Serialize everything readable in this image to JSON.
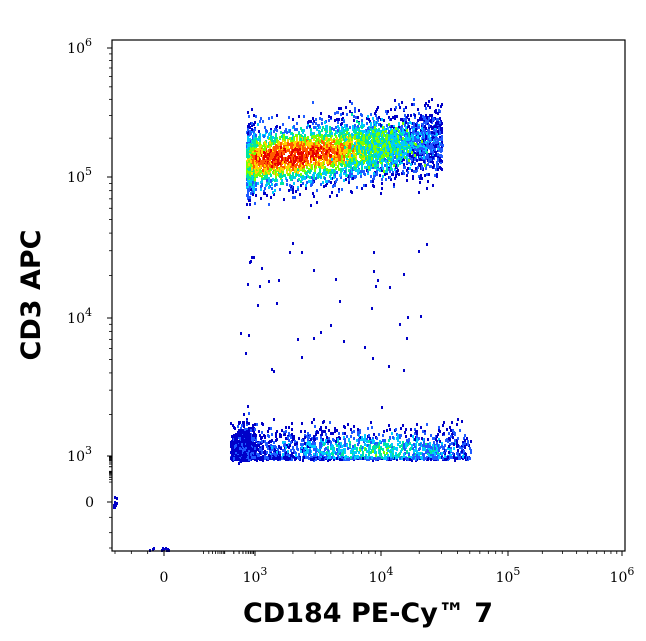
{
  "chart_data": {
    "type": "scatter",
    "title": "",
    "xlabel": "CD184 PE-Cy™ 7",
    "ylabel": "CD3 APC",
    "x_scale": "biexponential",
    "y_scale": "biexponential",
    "xlim": [
      -300,
      1200000
    ],
    "ylim": [
      -300,
      1100000
    ],
    "grid": false,
    "legend": "none",
    "x_ticks": [
      {
        "value": 0,
        "base": "0",
        "exp": ""
      },
      {
        "value": 1000,
        "base": "10",
        "exp": "3"
      },
      {
        "value": 10000,
        "base": "10",
        "exp": "4"
      },
      {
        "value": 100000,
        "base": "10",
        "exp": "5"
      },
      {
        "value": 1000000,
        "base": "10",
        "exp": "6"
      }
    ],
    "y_ticks": [
      {
        "value": 0,
        "base": "0",
        "exp": ""
      },
      {
        "value": 1000,
        "base": "10",
        "exp": "3"
      },
      {
        "value": 10000,
        "base": "10",
        "exp": "4"
      },
      {
        "value": 100000,
        "base": "10",
        "exp": "5"
      },
      {
        "value": 1000000,
        "base": "10",
        "exp": "6"
      }
    ],
    "populations": [
      {
        "x_range": [
          500,
          30000
        ],
        "y_center": 130000,
        "y_range": [
          55000,
          450000
        ],
        "density_peak_x": 2000
      },
      {
        "x_range": [
          120,
          60000
        ],
        "y_center": 1100,
        "y_range": [
          650,
          2600
        ],
        "density_peak_x": 9000
      }
    ],
    "density_colors": [
      "#0000c8",
      "#1e5aff",
      "#00c8ff",
      "#00e6a0",
      "#78ff00",
      "#ffd200",
      "#ff5a00",
      "#e60000"
    ]
  }
}
